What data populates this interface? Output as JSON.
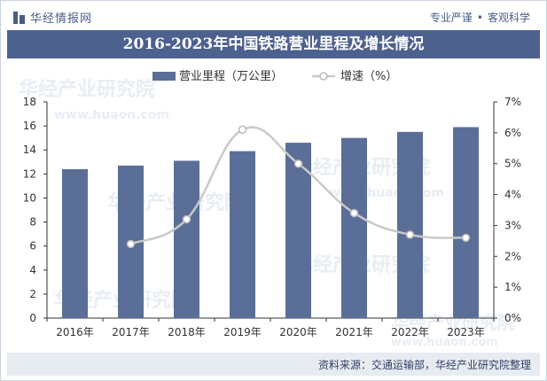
{
  "header": {
    "brand": "华经情报网",
    "slogan_left": "专业严谨",
    "slogan_dot": "•",
    "slogan_right": "客观科学"
  },
  "title": "2016-2023年中国铁路营业里程及增长情况",
  "watermark": {
    "cn": "华经产业研究院",
    "url": "www.huaon.com"
  },
  "footer": {
    "source": "资料来源：交通运输部，华经产业研究院整理"
  },
  "colors": {
    "bar": "#5b6e98",
    "line": "#c9c9c9",
    "title_bg": "#4d618f",
    "footer_bg": "#e7ebf2"
  },
  "chart_data": {
    "type": "bar",
    "categories": [
      "2016年",
      "2017年",
      "2018年",
      "2019年",
      "2020年",
      "2021年",
      "2022年",
      "2023年"
    ],
    "series": [
      {
        "name": "营业里程（万公里）",
        "type": "bar",
        "axis": "left",
        "values": [
          12.4,
          12.7,
          13.1,
          13.9,
          14.6,
          15.0,
          15.5,
          15.9
        ]
      },
      {
        "name": "增速（%）",
        "type": "line",
        "axis": "right",
        "values": [
          null,
          2.4,
          3.2,
          6.1,
          5.0,
          3.4,
          2.7,
          2.6
        ]
      }
    ],
    "y_left": {
      "min": 0,
      "max": 18,
      "ticks": [
        "0",
        "2",
        "4",
        "6",
        "8",
        "10",
        "12",
        "14",
        "16",
        "18"
      ]
    },
    "y_right": {
      "min": 0,
      "max": 7,
      "ticks": [
        "0%",
        "1%",
        "2%",
        "3%",
        "4%",
        "5%",
        "6%",
        "7%"
      ]
    },
    "legend_position": "top-center",
    "grid": false
  }
}
